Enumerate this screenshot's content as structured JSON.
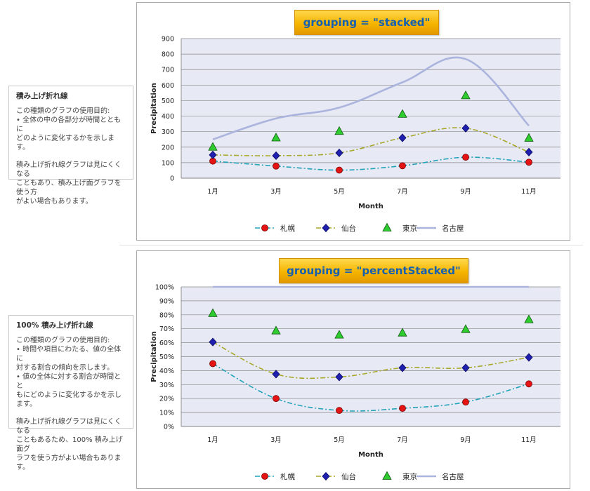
{
  "notes": [
    {
      "title": "積み上げ折れ線",
      "paragraphs": [
        "この種類のグラフの使用目的:\n• 全体の中の各部分が時間とともに\nどのように変化するかを示します。",
        "積み上げ折れ線グラフは見にくくなる\nこともあり、積み上げ面グラフを使う方\nがよい場合もあります。"
      ]
    },
    {
      "title": "100% 積み上げ折れ線",
      "paragraphs": [
        "この種類のグラフの使用目的:\n• 時間や項目にわたる、値の全体に\n対する割合の傾向を示します。\n• 値の全体に対する割合が時間とと\nもにどのように変化するかを示します。",
        "積み上げ折れ線グラフは見にくくなる\nこともあるため、100% 積み上げ面グ\nラフを使う方がよい場合もあります。"
      ]
    }
  ],
  "chart_data": [
    {
      "type": "line",
      "title": "grouping = \"stacked\"",
      "xlabel": "Month",
      "ylabel": "Precipitation",
      "categories": [
        "1月",
        "3月",
        "5月",
        "7月",
        "9月",
        "11月"
      ],
      "ylim": [
        0,
        900
      ],
      "yticks": [
        0,
        100,
        200,
        300,
        400,
        500,
        600,
        700,
        800,
        900
      ],
      "ytick_labels": [
        "0",
        "100",
        "200",
        "300",
        "400",
        "500",
        "600",
        "700",
        "800",
        "900"
      ],
      "grid": true,
      "legend": "bottom",
      "series": [
        {
          "name": "札幌",
          "values": [
            110,
            78,
            52,
            80,
            135,
            103
          ],
          "color": "#21a3b8",
          "line": "dashdot",
          "smooth": true,
          "marker": "circle",
          "marker_color": "#e41414"
        },
        {
          "name": "仙台",
          "values": [
            150,
            145,
            163,
            260,
            322,
            168
          ],
          "color": "#a8a82a",
          "line": "dashdot",
          "smooth": true,
          "marker": "diamond",
          "marker_color": "#1f1fb0"
        },
        {
          "name": "東京",
          "values": [
            200,
            260,
            302,
            412,
            532,
            258
          ],
          "color": "#2ecc2e",
          "line": "none",
          "smooth": false,
          "marker": "triangle",
          "marker_color": "#2ecc2e"
        },
        {
          "name": "名古屋",
          "values": [
            250,
            385,
            455,
            618,
            768,
            338
          ],
          "color": "#aab4dd",
          "line": "solid",
          "smooth": true,
          "marker": "none",
          "marker_color": "#aab4dd"
        }
      ]
    },
    {
      "type": "line",
      "title": "grouping = \"percentStacked\"",
      "xlabel": "Month",
      "ylabel": "Precipitation",
      "categories": [
        "1月",
        "3月",
        "5月",
        "7月",
        "9月",
        "11月"
      ],
      "ylim": [
        0,
        100
      ],
      "yticks": [
        0,
        10,
        20,
        30,
        40,
        50,
        60,
        70,
        80,
        90,
        100
      ],
      "ytick_labels": [
        "0%",
        "10%",
        "20%",
        "30%",
        "40%",
        "50%",
        "60%",
        "70%",
        "80%",
        "90%",
        "100%"
      ],
      "grid": true,
      "legend": "bottom",
      "series": [
        {
          "name": "札幌",
          "values": [
            45,
            20,
            11.5,
            13,
            17.5,
            30.5
          ],
          "color": "#21a3b8",
          "line": "dashdot",
          "smooth": true,
          "marker": "circle",
          "marker_color": "#e41414"
        },
        {
          "name": "仙台",
          "values": [
            60.5,
            37.5,
            35.5,
            42,
            42,
            49.5
          ],
          "color": "#a8a82a",
          "line": "dashdot",
          "smooth": true,
          "marker": "diamond",
          "marker_color": "#1f1fb0"
        },
        {
          "name": "東京",
          "values": [
            81,
            68.5,
            65.5,
            67,
            69.5,
            76.5
          ],
          "color": "#2ecc2e",
          "line": "none",
          "smooth": false,
          "marker": "triangle",
          "marker_color": "#2ecc2e"
        },
        {
          "name": "名古屋",
          "values": [
            100,
            100,
            100,
            100,
            100,
            100
          ],
          "color": "#aab4dd",
          "line": "solid",
          "smooth": true,
          "marker": "none",
          "marker_color": "#aab4dd"
        }
      ]
    }
  ]
}
